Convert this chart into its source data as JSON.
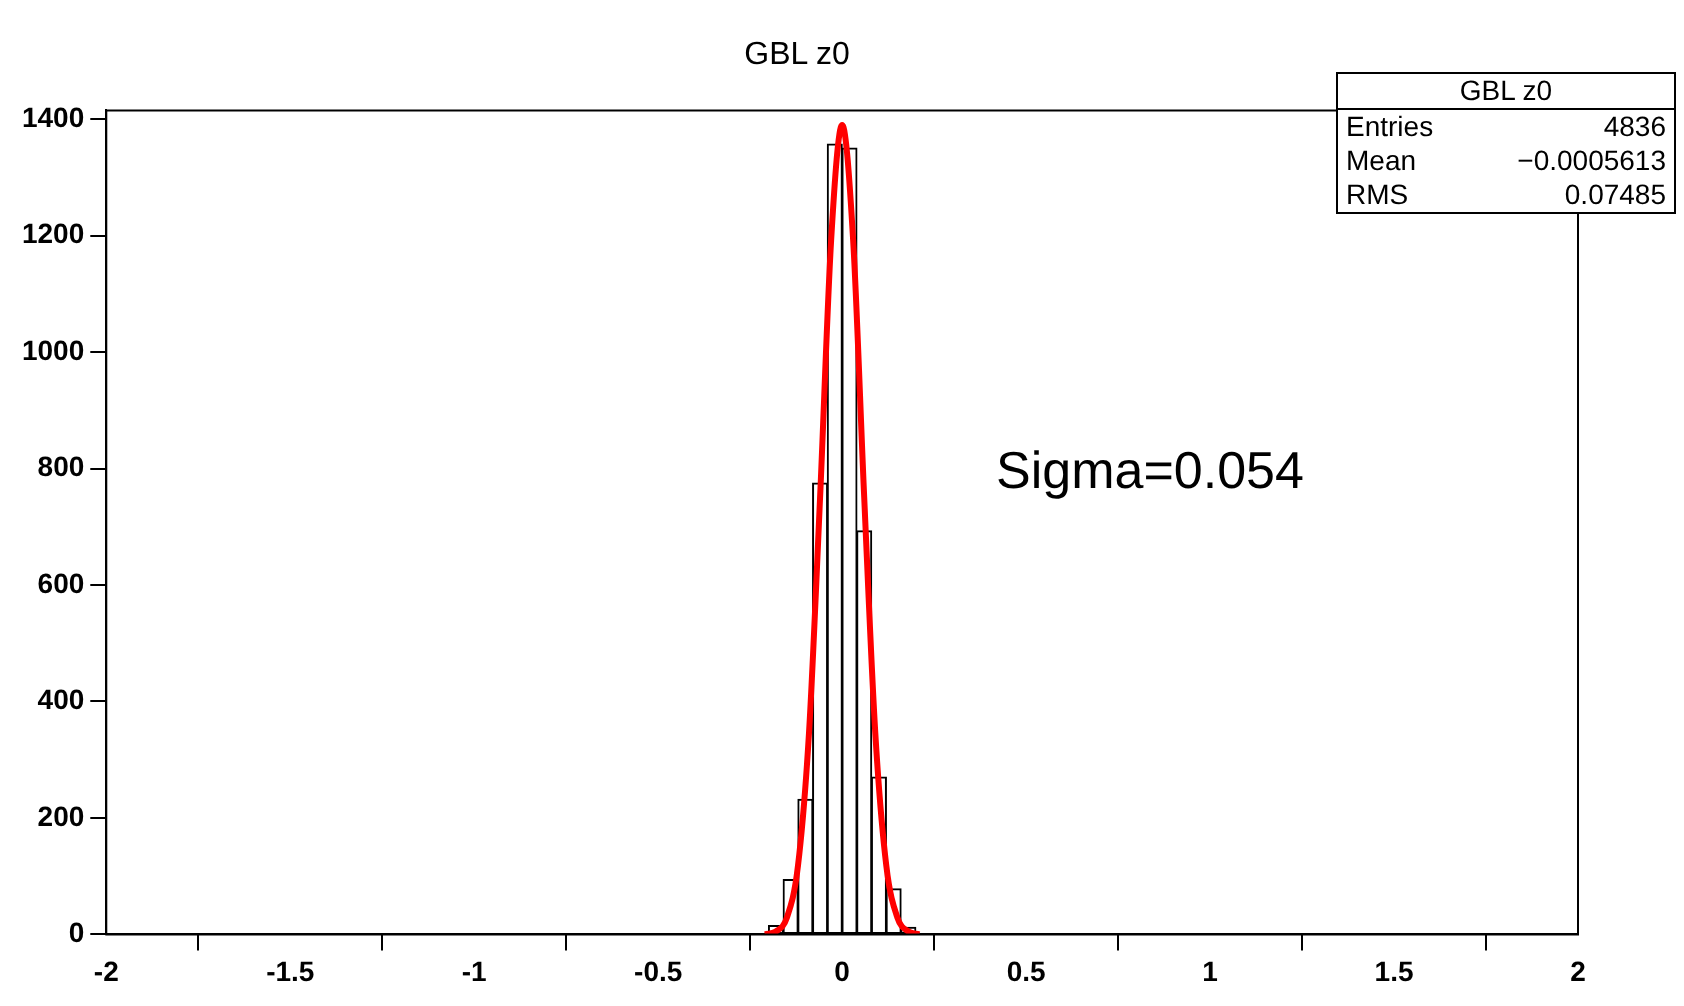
{
  "chart_data": {
    "type": "histogram",
    "title": "GBL z0",
    "bins": [
      -0.24,
      -0.2,
      -0.16,
      -0.12,
      -0.08,
      -0.04,
      0,
      0.04,
      0.08,
      0.12,
      0.16,
      0.2,
      0.24
    ],
    "values": [
      null,
      15,
      94,
      232,
      775,
      1357,
      1350,
      693,
      270,
      78,
      12,
      null
    ],
    "color": "#000000",
    "series": [
      {
        "type": "line",
        "color": "#ff0000",
        "x": [
          -0.21,
          -0.18,
          -0.15,
          -0.12,
          -0.09,
          -0.06,
          -0.03,
          0,
          0.03,
          0.06,
          0.09,
          0.12,
          0.15,
          0.18,
          0.21
        ],
        "values": [
          0,
          5,
          29,
          118,
          347,
          750,
          1191,
          1390,
          1191,
          750,
          347,
          118,
          29,
          5,
          0
        ]
      }
    ],
    "xlim": [
      -2,
      2
    ],
    "xticks": [
      -2,
      -1.5,
      -1,
      -0.5,
      0,
      0.5,
      1,
      1.5,
      2
    ],
    "ylim": [
      0,
      1415
    ],
    "yticks": [
      0,
      200,
      400,
      600,
      800,
      1000,
      1200,
      1400
    ],
    "grid": false,
    "annotations": [
      "GBL z0",
      "Entries 4836",
      "Mean −0.0005613",
      "RMS 0.07485",
      "Sigma=0.054"
    ]
  }
}
